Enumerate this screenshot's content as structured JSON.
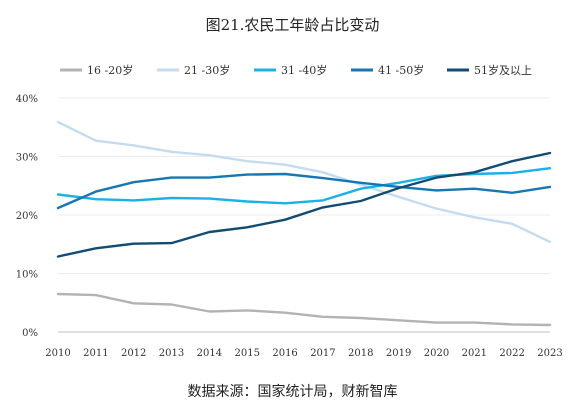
{
  "title": "图21.农民工年龄占比变动",
  "source": "数据来源：国家统计局，财新智库",
  "chart_data": {
    "type": "line",
    "title": "图21.农民工年龄占比变动",
    "x": [
      2010,
      2011,
      2012,
      2013,
      2014,
      2015,
      2016,
      2017,
      2018,
      2019,
      2020,
      2021,
      2022,
      2023
    ],
    "x_tick_labels": [
      "2010",
      "2011",
      "2012",
      "2013",
      "2014",
      "2015",
      "2016",
      "2017",
      "2018",
      "2019",
      "2020",
      "2021",
      "2022",
      "2023"
    ],
    "ylim": [
      0,
      40
    ],
    "y_ticks": [
      0,
      10,
      20,
      30,
      40
    ],
    "y_tick_labels": [
      "0%",
      "10%",
      "20%",
      "30%",
      "40%"
    ],
    "grid": true,
    "legend_position": "top",
    "series": [
      {
        "name": "16 -20岁",
        "color": "#b3b3b3",
        "values": [
          6.5,
          6.3,
          4.9,
          4.7,
          3.5,
          3.7,
          3.3,
          2.6,
          2.4,
          2.0,
          1.6,
          1.6,
          1.3,
          1.2
        ]
      },
      {
        "name": "21 -30岁",
        "color": "#c5dcf0",
        "values": [
          35.9,
          32.7,
          31.9,
          30.8,
          30.2,
          29.2,
          28.6,
          27.3,
          25.2,
          23.1,
          21.1,
          19.6,
          18.5,
          15.4
        ]
      },
      {
        "name": "31 -40岁",
        "color": "#1cb0e6",
        "values": [
          23.5,
          22.7,
          22.5,
          22.9,
          22.8,
          22.3,
          22.0,
          22.5,
          24.5,
          25.5,
          26.7,
          27.0,
          27.2,
          28.0
        ]
      },
      {
        "name": "41 -50岁",
        "color": "#1677b3",
        "values": [
          21.2,
          24.0,
          25.6,
          26.4,
          26.4,
          26.9,
          27.0,
          26.3,
          25.5,
          24.8,
          24.2,
          24.5,
          23.8,
          24.8
        ]
      },
      {
        "name": "51岁及以上",
        "color": "#134c73",
        "values": [
          12.9,
          14.3,
          15.1,
          15.2,
          17.1,
          17.9,
          19.2,
          21.3,
          22.4,
          24.6,
          26.4,
          27.3,
          29.2,
          30.6
        ]
      }
    ]
  }
}
